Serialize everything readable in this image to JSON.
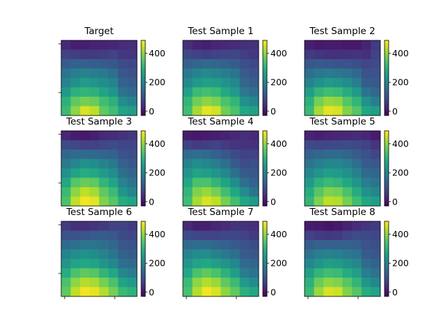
{
  "chart_data": {
    "type": "heatmap",
    "rows": 8,
    "cols": 8,
    "colormap": "viridis",
    "colorbar": {
      "vmin": -30,
      "vmax": 490,
      "ticks": [
        0,
        200,
        400
      ],
      "tick_labels": [
        "0",
        "200",
        "400"
      ]
    },
    "grid": false,
    "panels": [
      {
        "title": "Target",
        "values": [
          [
            30,
            15,
            15,
            20,
            20,
            25,
            35,
            40
          ],
          [
            70,
            65,
            60,
            60,
            65,
            70,
            55,
            50
          ],
          [
            120,
            130,
            130,
            125,
            120,
            110,
            90,
            80
          ],
          [
            170,
            190,
            200,
            190,
            180,
            160,
            110,
            100
          ],
          [
            200,
            230,
            250,
            240,
            220,
            200,
            130,
            120
          ],
          [
            250,
            300,
            310,
            300,
            270,
            240,
            170,
            150
          ],
          [
            300,
            360,
            380,
            370,
            330,
            300,
            220,
            200
          ],
          [
            320,
            400,
            460,
            440,
            360,
            330,
            270,
            260
          ]
        ]
      },
      {
        "title": "Test Sample 1",
        "values": [
          [
            40,
            20,
            15,
            25,
            30,
            35,
            40,
            45
          ],
          [
            80,
            70,
            65,
            70,
            75,
            80,
            65,
            55
          ],
          [
            130,
            140,
            145,
            140,
            130,
            120,
            95,
            85
          ],
          [
            180,
            200,
            215,
            205,
            190,
            170,
            120,
            105
          ],
          [
            215,
            245,
            265,
            255,
            235,
            210,
            140,
            125
          ],
          [
            265,
            320,
            335,
            320,
            285,
            250,
            180,
            160
          ],
          [
            310,
            375,
            400,
            385,
            340,
            310,
            230,
            205
          ],
          [
            330,
            420,
            470,
            455,
            375,
            340,
            280,
            265
          ]
        ]
      },
      {
        "title": "Test Sample 2",
        "values": [
          [
            15,
            5,
            10,
            10,
            5,
            5,
            20,
            60
          ],
          [
            60,
            50,
            45,
            40,
            45,
            50,
            40,
            70
          ],
          [
            110,
            115,
            110,
            105,
            100,
            95,
            80,
            90
          ],
          [
            160,
            175,
            185,
            175,
            165,
            145,
            100,
            100
          ],
          [
            200,
            230,
            250,
            240,
            220,
            190,
            120,
            115
          ],
          [
            255,
            310,
            330,
            320,
            290,
            250,
            170,
            145
          ],
          [
            300,
            380,
            410,
            400,
            350,
            310,
            230,
            190
          ],
          [
            320,
            420,
            470,
            460,
            390,
            350,
            280,
            260
          ]
        ]
      },
      {
        "title": "Test Sample 3",
        "values": [
          [
            25,
            10,
            5,
            15,
            30,
            35,
            45,
            55
          ],
          [
            90,
            80,
            70,
            70,
            80,
            90,
            80,
            75
          ],
          [
            140,
            150,
            150,
            145,
            140,
            130,
            100,
            95
          ],
          [
            180,
            210,
            230,
            220,
            200,
            180,
            130,
            115
          ],
          [
            230,
            270,
            290,
            280,
            250,
            220,
            160,
            140
          ],
          [
            280,
            350,
            370,
            360,
            310,
            270,
            200,
            170
          ],
          [
            320,
            400,
            440,
            420,
            360,
            320,
            240,
            210
          ],
          [
            340,
            440,
            480,
            470,
            390,
            350,
            290,
            270
          ]
        ]
      },
      {
        "title": "Test Sample 4",
        "values": [
          [
            10,
            5,
            10,
            15,
            20,
            30,
            40,
            30
          ],
          [
            70,
            60,
            65,
            70,
            60,
            50,
            45,
            45
          ],
          [
            150,
            160,
            150,
            130,
            110,
            90,
            70,
            70
          ],
          [
            200,
            220,
            210,
            190,
            160,
            120,
            90,
            95
          ],
          [
            240,
            270,
            260,
            240,
            210,
            160,
            120,
            110
          ],
          [
            280,
            340,
            340,
            310,
            270,
            220,
            160,
            130
          ],
          [
            310,
            390,
            410,
            380,
            330,
            280,
            220,
            170
          ],
          [
            330,
            420,
            460,
            440,
            380,
            330,
            280,
            250
          ]
        ]
      },
      {
        "title": "Test Sample 5",
        "values": [
          [
            20,
            15,
            20,
            25,
            30,
            35,
            25,
            10
          ],
          [
            85,
            80,
            80,
            85,
            90,
            85,
            70,
            50
          ],
          [
            130,
            140,
            150,
            150,
            140,
            120,
            100,
            80
          ],
          [
            170,
            190,
            210,
            210,
            190,
            160,
            120,
            110
          ],
          [
            210,
            240,
            260,
            250,
            230,
            200,
            150,
            140
          ],
          [
            250,
            300,
            320,
            310,
            280,
            240,
            190,
            170
          ],
          [
            290,
            350,
            390,
            380,
            340,
            290,
            230,
            210
          ],
          [
            310,
            390,
            440,
            430,
            380,
            330,
            280,
            260
          ]
        ]
      },
      {
        "title": "Test Sample 6",
        "values": [
          [
            60,
            40,
            40,
            50,
            60,
            70,
            70,
            60
          ],
          [
            100,
            100,
            110,
            120,
            120,
            110,
            90,
            80
          ],
          [
            150,
            160,
            170,
            170,
            160,
            140,
            110,
            100
          ],
          [
            200,
            220,
            230,
            220,
            200,
            170,
            130,
            120
          ],
          [
            240,
            270,
            280,
            270,
            240,
            210,
            160,
            150
          ],
          [
            290,
            340,
            360,
            350,
            310,
            280,
            210,
            190
          ],
          [
            340,
            400,
            430,
            420,
            380,
            340,
            270,
            250
          ],
          [
            360,
            440,
            480,
            470,
            430,
            380,
            320,
            300
          ]
        ]
      },
      {
        "title": "Test Sample 7",
        "values": [
          [
            30,
            15,
            15,
            25,
            35,
            45,
            45,
            40
          ],
          [
            90,
            80,
            75,
            75,
            80,
            80,
            70,
            60
          ],
          [
            150,
            155,
            150,
            140,
            130,
            120,
            100,
            90
          ],
          [
            200,
            220,
            220,
            200,
            180,
            160,
            120,
            110
          ],
          [
            240,
            270,
            280,
            260,
            240,
            210,
            150,
            140
          ],
          [
            280,
            340,
            360,
            340,
            300,
            260,
            190,
            170
          ],
          [
            320,
            400,
            430,
            410,
            360,
            320,
            250,
            220
          ],
          [
            340,
            430,
            480,
            460,
            400,
            360,
            300,
            280
          ]
        ]
      },
      {
        "title": "Test Sample 8",
        "values": [
          [
            10,
            5,
            0,
            5,
            20,
            35,
            50,
            60
          ],
          [
            70,
            60,
            55,
            60,
            75,
            90,
            85,
            80
          ],
          [
            120,
            130,
            130,
            130,
            130,
            125,
            100,
            95
          ],
          [
            170,
            190,
            200,
            195,
            180,
            165,
            120,
            110
          ],
          [
            210,
            240,
            260,
            250,
            230,
            210,
            150,
            135
          ],
          [
            260,
            310,
            330,
            320,
            290,
            260,
            190,
            165
          ],
          [
            300,
            370,
            400,
            390,
            350,
            310,
            240,
            210
          ],
          [
            320,
            410,
            460,
            450,
            390,
            350,
            290,
            270
          ]
        ]
      }
    ]
  }
}
